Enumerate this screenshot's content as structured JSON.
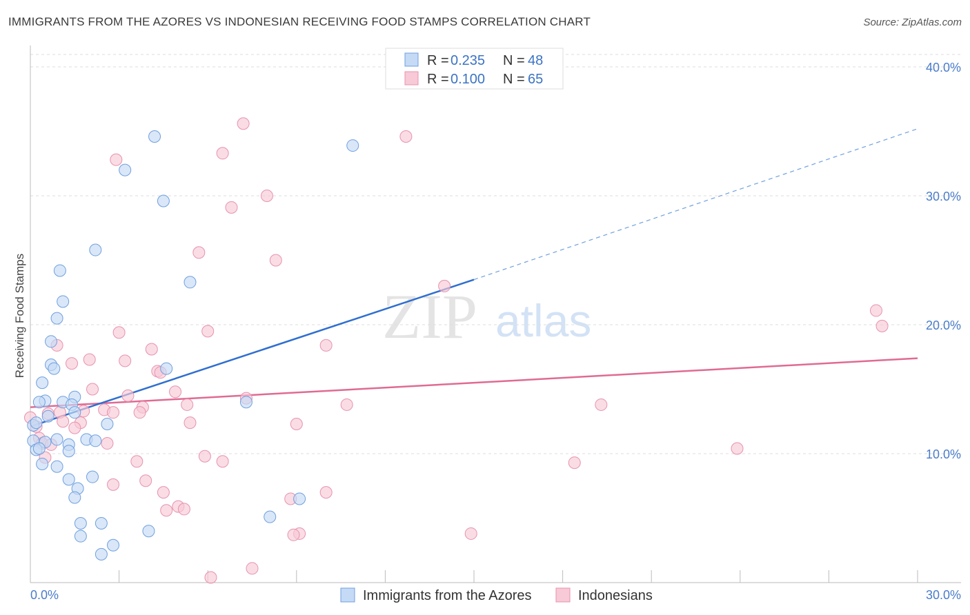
{
  "title": "IMMIGRANTS FROM THE AZORES VS INDONESIAN RECEIVING FOOD STAMPS CORRELATION CHART",
  "source": "Source: ZipAtlas.com",
  "watermark": {
    "zip": "ZIP",
    "atlas": "atlas"
  },
  "chart_data": {
    "type": "scatter",
    "title": "IMMIGRANTS FROM THE AZORES VS INDONESIAN RECEIVING FOOD STAMPS CORRELATION CHART",
    "xlabel": "",
    "ylabel": "Receiving Food Stamps",
    "xlim": [
      0,
      30
    ],
    "ylim": [
      0,
      40
    ],
    "x_tick_labels": {
      "min": "0.0%",
      "max": "30.0%"
    },
    "y_ticks": [
      {
        "value": 10,
        "label": "10.0%"
      },
      {
        "value": 20,
        "label": "20.0%"
      },
      {
        "value": 30,
        "label": "30.0%"
      },
      {
        "value": 40,
        "label": "40.0%"
      }
    ],
    "legend": [
      {
        "r_label": "R =",
        "r": "0.235",
        "n_label": "N =",
        "n": "48"
      },
      {
        "r_label": "R =",
        "r": "0.100",
        "n_label": "N =",
        "n": "65"
      }
    ],
    "series": [
      {
        "name": "Immigrants from the Azores",
        "color": "#6f9fdf",
        "fill": "#c5daf5",
        "trend": {
          "x0": 0,
          "y0": 12.1,
          "x1": 15,
          "y1": 23.5,
          "dash_x1": 30,
          "dash_y1": 35.2
        },
        "points": [
          [
            4.2,
            34.6
          ],
          [
            10.9,
            33.9
          ],
          [
            3.2,
            32.0
          ],
          [
            4.5,
            29.6
          ],
          [
            2.2,
            25.8
          ],
          [
            1.0,
            24.2
          ],
          [
            5.4,
            23.3
          ],
          [
            1.1,
            21.8
          ],
          [
            0.9,
            20.5
          ],
          [
            0.7,
            18.7
          ],
          [
            0.7,
            16.9
          ],
          [
            0.8,
            16.6
          ],
          [
            4.6,
            16.6
          ],
          [
            0.4,
            15.5
          ],
          [
            1.5,
            14.4
          ],
          [
            0.5,
            14.1
          ],
          [
            0.3,
            14.0
          ],
          [
            1.1,
            14.0
          ],
          [
            1.4,
            13.8
          ],
          [
            7.3,
            14.0
          ],
          [
            0.6,
            12.9
          ],
          [
            1.5,
            13.2
          ],
          [
            0.1,
            12.2
          ],
          [
            0.2,
            12.4
          ],
          [
            2.6,
            12.3
          ],
          [
            0.9,
            11.1
          ],
          [
            1.9,
            11.1
          ],
          [
            2.2,
            11.0
          ],
          [
            0.5,
            10.9
          ],
          [
            0.1,
            11.0
          ],
          [
            1.3,
            10.7
          ],
          [
            0.2,
            10.3
          ],
          [
            0.3,
            10.4
          ],
          [
            1.3,
            10.2
          ],
          [
            0.4,
            9.2
          ],
          [
            0.9,
            9.0
          ],
          [
            1.3,
            8.0
          ],
          [
            2.1,
            8.2
          ],
          [
            1.6,
            7.3
          ],
          [
            1.5,
            6.6
          ],
          [
            9.1,
            6.5
          ],
          [
            8.1,
            5.1
          ],
          [
            1.7,
            4.6
          ],
          [
            2.4,
            4.6
          ],
          [
            4.0,
            4.0
          ],
          [
            1.7,
            3.6
          ],
          [
            2.8,
            2.9
          ],
          [
            2.4,
            2.2
          ]
        ]
      },
      {
        "name": "Indonesians",
        "color": "#e792ad",
        "fill": "#f8c9d7",
        "trend": {
          "x0": 0,
          "y0": 13.6,
          "x1": 30,
          "y1": 17.4
        },
        "points": [
          [
            7.2,
            35.6
          ],
          [
            12.7,
            34.6
          ],
          [
            2.9,
            32.8
          ],
          [
            6.5,
            33.3
          ],
          [
            8.0,
            30.0
          ],
          [
            6.8,
            29.1
          ],
          [
            5.7,
            25.6
          ],
          [
            8.3,
            25.0
          ],
          [
            14.0,
            23.0
          ],
          [
            28.6,
            21.1
          ],
          [
            28.8,
            19.9
          ],
          [
            3.0,
            19.4
          ],
          [
            6.0,
            19.5
          ],
          [
            0.9,
            18.4
          ],
          [
            10.0,
            18.4
          ],
          [
            4.1,
            18.1
          ],
          [
            2.0,
            17.3
          ],
          [
            3.2,
            17.2
          ],
          [
            1.4,
            17.0
          ],
          [
            4.3,
            16.4
          ],
          [
            4.4,
            16.3
          ],
          [
            2.1,
            15.0
          ],
          [
            4.9,
            14.8
          ],
          [
            3.3,
            14.5
          ],
          [
            7.3,
            14.3
          ],
          [
            10.7,
            13.8
          ],
          [
            5.3,
            13.8
          ],
          [
            19.3,
            13.8
          ],
          [
            3.8,
            13.6
          ],
          [
            2.5,
            13.4
          ],
          [
            1.8,
            13.3
          ],
          [
            1.0,
            13.2
          ],
          [
            2.8,
            13.2
          ],
          [
            0.6,
            13.1
          ],
          [
            3.7,
            13.2
          ],
          [
            0.0,
            12.8
          ],
          [
            1.1,
            12.5
          ],
          [
            1.7,
            12.4
          ],
          [
            5.4,
            12.4
          ],
          [
            9.0,
            12.3
          ],
          [
            0.2,
            12.1
          ],
          [
            1.5,
            12.0
          ],
          [
            0.3,
            11.2
          ],
          [
            0.4,
            10.8
          ],
          [
            2.6,
            10.8
          ],
          [
            0.7,
            10.7
          ],
          [
            23.9,
            10.4
          ],
          [
            5.9,
            9.8
          ],
          [
            0.5,
            9.7
          ],
          [
            3.6,
            9.4
          ],
          [
            6.5,
            9.4
          ],
          [
            18.4,
            9.3
          ],
          [
            3.9,
            7.9
          ],
          [
            2.8,
            7.6
          ],
          [
            4.5,
            7.0
          ],
          [
            10.0,
            7.0
          ],
          [
            8.8,
            6.5
          ],
          [
            5.0,
            5.9
          ],
          [
            5.2,
            5.7
          ],
          [
            4.6,
            5.6
          ],
          [
            9.1,
            3.8
          ],
          [
            8.9,
            3.7
          ],
          [
            14.9,
            3.8
          ],
          [
            7.5,
            1.1
          ],
          [
            6.1,
            0.4
          ]
        ]
      }
    ]
  }
}
